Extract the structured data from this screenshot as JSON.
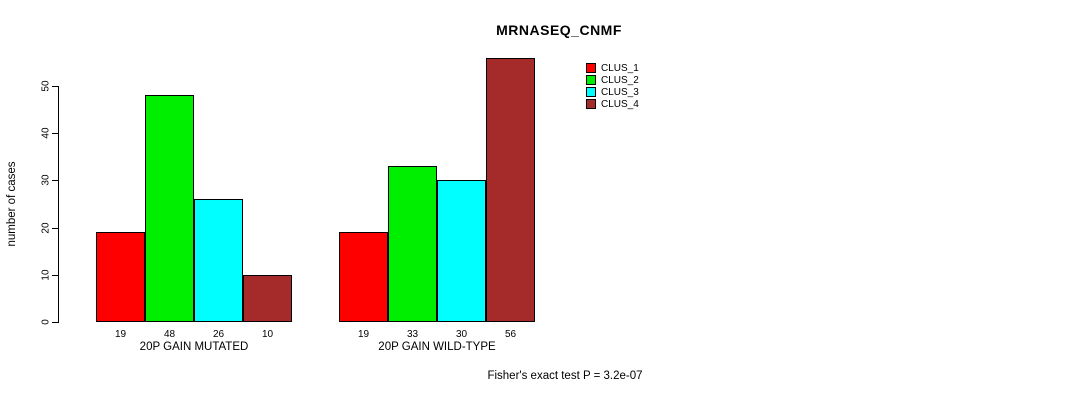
{
  "title": "MRNASEQ_CNMF",
  "chart_data": {
    "type": "bar",
    "title": "MRNASEQ_CNMF",
    "xlabel": "",
    "ylabel": "number of cases",
    "groups": [
      "20P GAIN MUTATED",
      "20P GAIN WILD-TYPE"
    ],
    "series": [
      {
        "name": "CLUS_1",
        "color": "#FF0000",
        "values": [
          19,
          19
        ]
      },
      {
        "name": "CLUS_2",
        "color": "#00EE00",
        "values": [
          48,
          33
        ]
      },
      {
        "name": "CLUS_3",
        "color": "#00FFFF",
        "values": [
          26,
          30
        ]
      },
      {
        "name": "CLUS_4",
        "color": "#A52A2A",
        "values": [
          10,
          56
        ]
      }
    ],
    "bar_value_labels": [
      [
        19,
        48,
        26,
        10
      ],
      [
        19,
        33,
        30,
        56
      ]
    ],
    "yticks": [
      0,
      10,
      20,
      30,
      40,
      50
    ],
    "ylim": [
      0,
      56
    ],
    "grid": false,
    "legend_position": "top-right",
    "legend": [
      "CLUS_1",
      "CLUS_2",
      "CLUS_3",
      "CLUS_4"
    ],
    "annotation": "Fisher's exact test P = 3.2e-07",
    "bar_outline_color": "#000000",
    "background_color": "#FFFFFF"
  }
}
